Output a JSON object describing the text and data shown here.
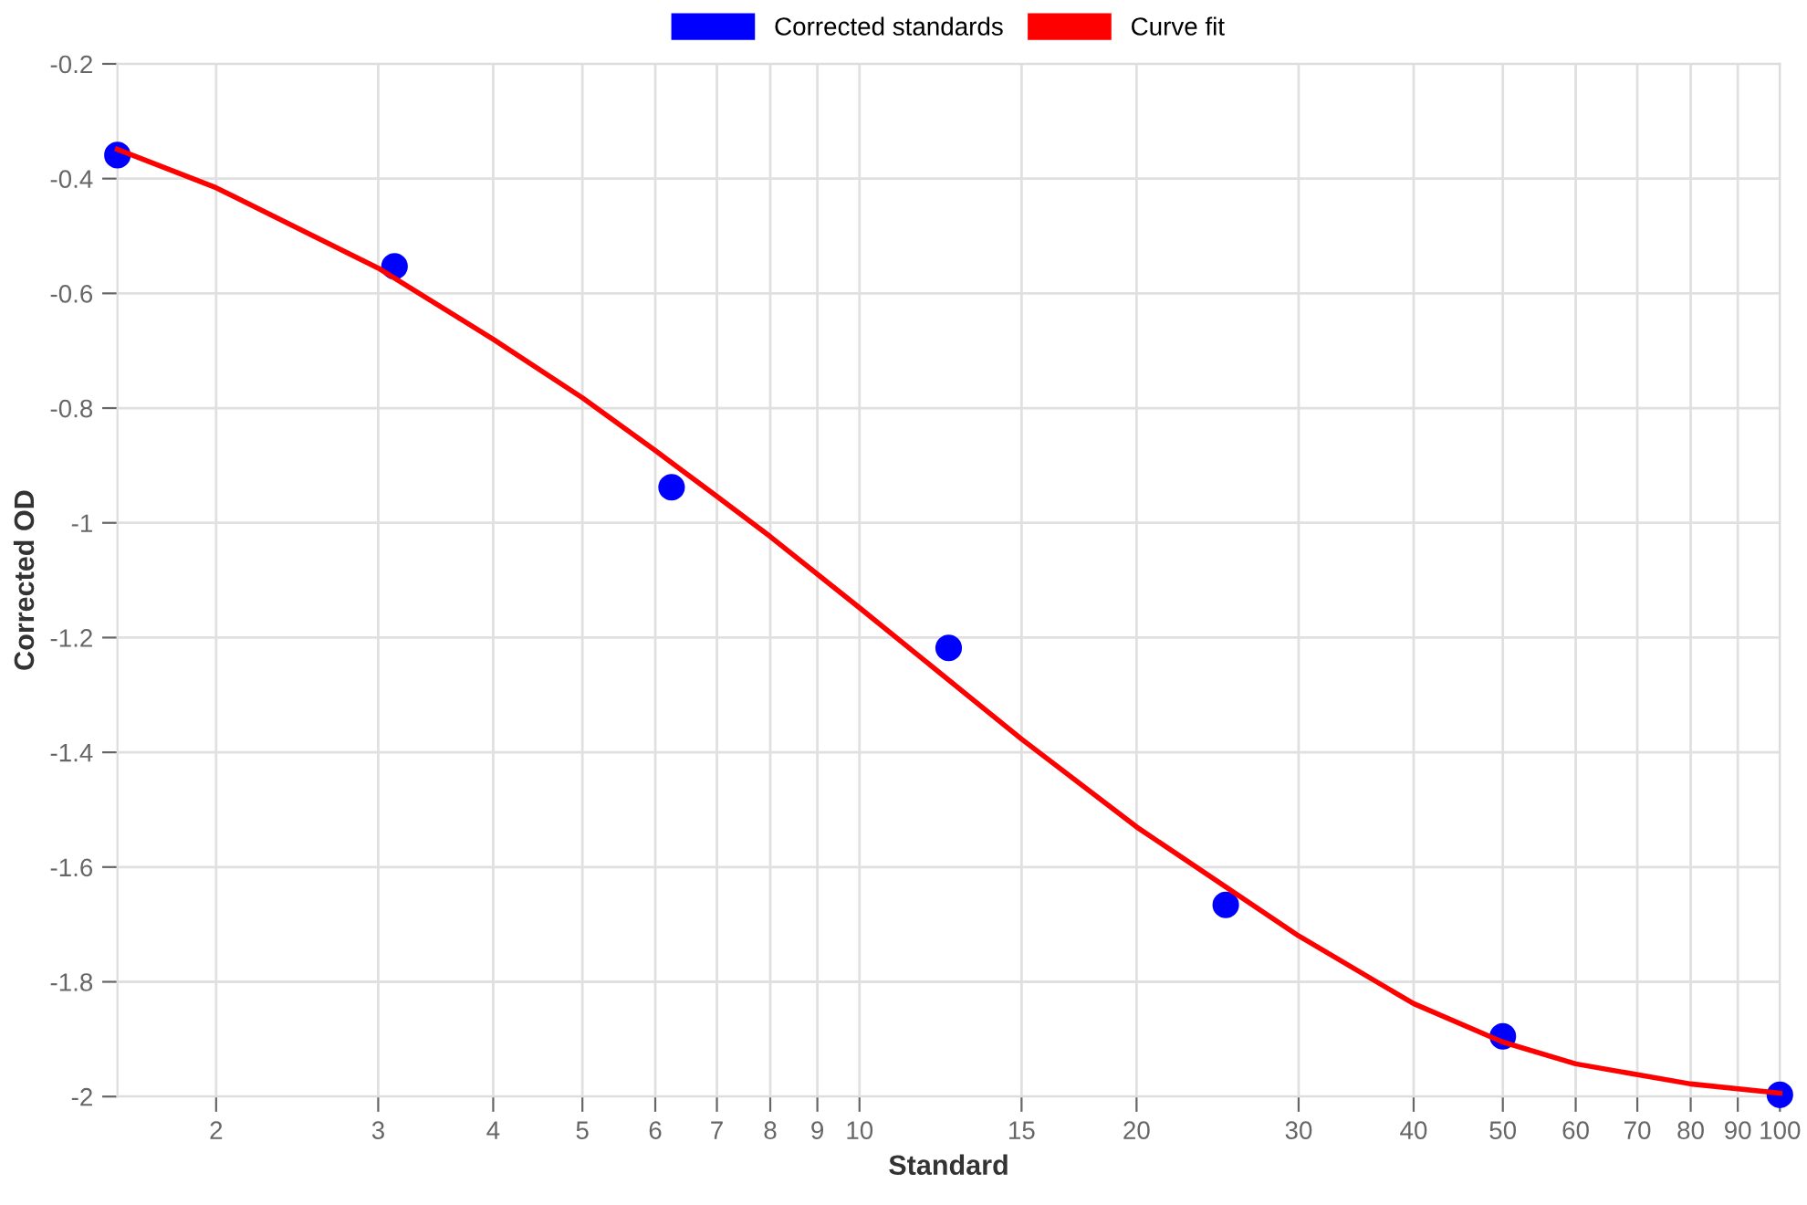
{
  "chart_data": {
    "type": "scatter",
    "xlabel": "Standard",
    "ylabel": "Corrected OD",
    "log": "x",
    "grid": true,
    "legend": "top",
    "xlim": [
      1.5625,
      100
    ],
    "xticks": [
      2,
      3,
      4,
      5,
      6,
      7,
      8,
      9,
      10,
      15,
      20,
      30,
      40,
      50,
      60,
      70,
      80,
      90,
      100
    ],
    "ylim": [
      -2,
      -0.2
    ],
    "yticks": [
      -0.2,
      -0.4,
      -0.6,
      -0.8,
      -1,
      -1.2,
      -1.4,
      -1.6,
      -1.8,
      -2
    ],
    "series": [
      {
        "name": "Corrected standards",
        "color": "#0000ff",
        "marker": "circle",
        "x": [
          1.5625,
          3.125,
          6.25,
          12.5,
          25,
          50,
          100
        ],
        "values": [
          -0.359,
          -0.553,
          -0.938,
          -1.218,
          -1.666,
          -1.895,
          -1.997
        ]
      },
      {
        "name": "Curve fit",
        "type": "line",
        "color": "#ff0000",
        "marker": "none",
        "line_style": "solid",
        "x": [
          1.5625,
          2,
          3,
          4,
          5,
          6,
          7,
          8,
          10,
          15,
          20,
          30,
          40,
          50,
          60,
          80,
          100
        ],
        "values": [
          -0.349,
          -0.416,
          -0.556,
          -0.68,
          -0.782,
          -0.874,
          -0.954,
          -1.024,
          -1.148,
          -1.377,
          -1.53,
          -1.72,
          -1.838,
          -1.905,
          -1.943,
          -1.978,
          -1.994
        ]
      }
    ]
  }
}
